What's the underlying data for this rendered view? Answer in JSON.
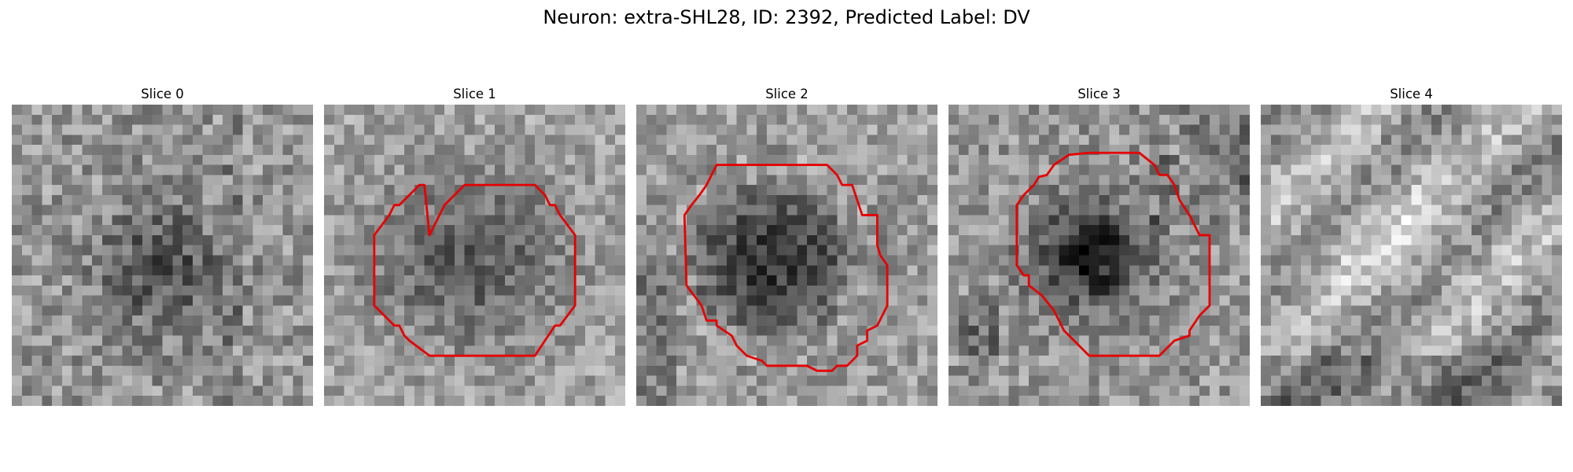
{
  "figure": {
    "title": "Neuron: extra-SHL28, ID: 2392, Predicted Label: DV",
    "contour_color": "#e60000"
  },
  "panels": [
    {
      "label": "Slice 0",
      "has_contour": false
    },
    {
      "label": "Slice 1",
      "has_contour": true
    },
    {
      "label": "Slice 2",
      "has_contour": true
    },
    {
      "label": "Slice 3",
      "has_contour": true
    },
    {
      "label": "Slice 4",
      "has_contour": false
    }
  ]
}
